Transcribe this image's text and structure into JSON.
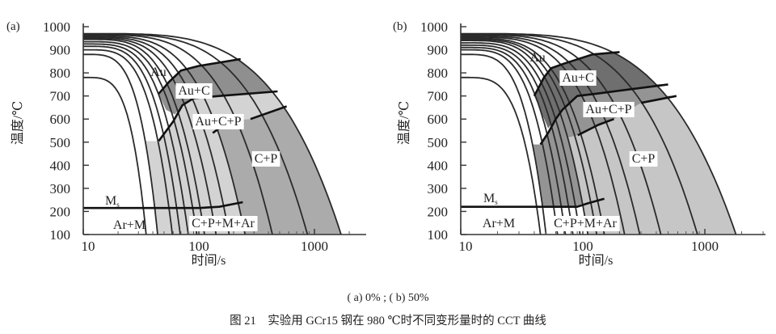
{
  "figure": {
    "caption_sub": "( a) 0% ; ( b) 50%",
    "caption_main": "图 21　实验用 GCr15 钢在 980 ℃时不同变形量时的 CCT 曲线"
  },
  "chart_data": [
    {
      "panel": "(a)",
      "type": "line",
      "title": "0%",
      "xlabel": "时间/s",
      "ylabel": "温度/℃",
      "xscale": "log",
      "xlim": [
        10,
        2500
      ],
      "ylim": [
        100,
        1000
      ],
      "xticks": [
        10,
        100,
        1000
      ],
      "xtick_labels": [
        "10",
        "100",
        "1000"
      ],
      "yticks": [
        100,
        200,
        300,
        400,
        500,
        600,
        700,
        800,
        900,
        1000
      ],
      "ytick_labels": [
        "100",
        "200",
        "300",
        "400",
        "500",
        "600",
        "700",
        "800",
        "900",
        "1000"
      ],
      "labels": {
        "au": "Au",
        "au_c": "Au+C",
        "au_c_p": "Au+C+P",
        "c_p": "C+P",
        "ms": "M",
        "ms_sub": "s",
        "ar_m": "Ar+M",
        "c_p_m_ar": "C+P+M+Ar"
      },
      "cooling_curves": [
        {
          "T0": 780,
          "t_end": 35
        },
        {
          "T0": 880,
          "t_end": 44
        },
        {
          "T0": 900,
          "t_end": 59
        },
        {
          "T0": 915,
          "t_end": 69
        },
        {
          "T0": 925,
          "t_end": 81
        },
        {
          "T0": 935,
          "t_end": 96
        },
        {
          "T0": 945,
          "t_end": 112
        },
        {
          "T0": 950,
          "t_end": 141
        },
        {
          "T0": 955,
          "t_end": 183
        },
        {
          "T0": 960,
          "t_end": 251
        },
        {
          "T0": 965,
          "t_end": 433
        },
        {
          "T0": 968,
          "t_end": 870
        },
        {
          "T0": 970,
          "t_end": 1700
        }
      ],
      "boundaries": [
        {
          "name": "austenite-decomposition-start",
          "points": [
            [
              45,
              710
            ],
            [
              55,
              760
            ],
            [
              70,
              810
            ],
            [
              100,
              830
            ],
            [
              230,
              860
            ]
          ]
        },
        {
          "name": "pearlite-start",
          "points": [
            [
              45,
              505
            ],
            [
              60,
              590
            ],
            [
              72,
              660
            ],
            [
              90,
              690
            ],
            [
              150,
              700
            ],
            [
              480,
              720
            ]
          ]
        },
        {
          "name": "pearlite-mark",
          "points": [
            [
              132,
              540
            ],
            [
              150,
              560
            ]
          ]
        },
        {
          "name": "transformation-end",
          "points": [
            [
              280,
              600
            ],
            [
              575,
              655
            ]
          ]
        },
        {
          "name": "ms-line",
          "points": [
            [
              10,
              215
            ],
            [
              100,
              215
            ],
            [
              150,
              220
            ],
            [
              240,
              240
            ]
          ]
        }
      ],
      "regions": [
        {
          "name": "light",
          "color": "#d3d3d3",
          "polygon": [
            [
              45,
              505
            ],
            [
              60,
              590
            ],
            [
              72,
              660
            ],
            [
              90,
              690
            ],
            [
              150,
              700
            ],
            [
              480,
              720
            ],
            {
              "curve": 12,
              "from": 720,
              "to": 655
            },
            [
              575,
              655
            ],
            [
              280,
              600
            ],
            {
              "curve": 9,
              "from": 590,
              "to": 100
            },
            {
              "curve": 1,
              "from": 100,
              "to": 505
            }
          ]
        },
        {
          "name": "medium",
          "color": "#ababab",
          "polygon": [
            [
              280,
              600
            ],
            [
              575,
              655
            ],
            {
              "curve": 12,
              "from": 655,
              "to": 100
            },
            {
              "curve": 9,
              "from": 100,
              "to": 590
            }
          ]
        },
        {
          "name": "dark",
          "color": "#8f8f8f",
          "polygon": [
            [
              45,
              710
            ],
            [
              55,
              760
            ],
            [
              70,
              810
            ],
            [
              100,
              830
            ],
            [
              230,
              860
            ],
            {
              "curve": 12,
              "from": 860,
              "to": 720
            },
            [
              480,
              720
            ],
            [
              150,
              700
            ],
            [
              90,
              690
            ],
            [
              72,
              660
            ],
            [
              62,
              620
            ],
            [
              52,
              640
            ]
          ]
        }
      ]
    },
    {
      "panel": "(b)",
      "type": "line",
      "title": "50%",
      "xlabel": "时间/s",
      "ylabel": "温度/℃",
      "xscale": "log",
      "xlim": [
        10,
        2500
      ],
      "ylim": [
        100,
        1000
      ],
      "xticks": [
        10,
        100,
        1000
      ],
      "xtick_labels": [
        "10",
        "100",
        "1000"
      ],
      "yticks": [
        100,
        200,
        300,
        400,
        500,
        600,
        700,
        800,
        900,
        1000
      ],
      "ytick_labels": [
        "100",
        "200",
        "300",
        "400",
        "500",
        "600",
        "700",
        "800",
        "900",
        "1000"
      ],
      "labels": {
        "au": "Au",
        "au_c": "Au+C",
        "au_c_p": "Au+C+P",
        "c_p": "C+P",
        "ms": "M",
        "ms_sub": "s",
        "ar_m": "Ar+M",
        "c_p_m_ar": "C+P+M+Ar"
      },
      "cooling_curves": [
        {
          "T0": 780,
          "t_end": 45
        },
        {
          "T0": 880,
          "t_end": 50
        },
        {
          "T0": 900,
          "t_end": 62
        },
        {
          "T0": 910,
          "t_end": 72
        },
        {
          "T0": 920,
          "t_end": 83
        },
        {
          "T0": 930,
          "t_end": 95
        },
        {
          "T0": 940,
          "t_end": 110
        },
        {
          "T0": 945,
          "t_end": 130
        },
        {
          "T0": 950,
          "t_end": 150
        },
        {
          "T0": 955,
          "t_end": 220
        },
        {
          "T0": 960,
          "t_end": 293
        },
        {
          "T0": 965,
          "t_end": 436
        },
        {
          "T0": 968,
          "t_end": 870
        },
        {
          "T0": 970,
          "t_end": 1800
        }
      ],
      "boundaries": [
        {
          "name": "austenite-decomposition-start",
          "points": [
            [
              40,
              700
            ],
            [
              48,
              780
            ],
            [
              55,
              820
            ],
            [
              70,
              840
            ],
            [
              120,
              880
            ],
            [
              200,
              890
            ]
          ]
        },
        {
          "name": "pearlite-start",
          "points": [
            [
              45,
              490
            ],
            [
              52,
              540
            ],
            [
              60,
              600
            ],
            [
              68,
              640
            ],
            [
              90,
              700
            ],
            [
              130,
              710
            ],
            [
              500,
              750
            ]
          ]
        },
        {
          "name": "transformation-end",
          "points": [
            [
              91,
              530
            ],
            [
              134,
              575
            ],
            [
              180,
              600
            ]
          ]
        },
        {
          "name": "transformation-end-upper",
          "points": [
            [
              300,
              670
            ],
            [
              585,
              700
            ]
          ]
        },
        {
          "name": "ms-line",
          "points": [
            [
              10,
              220
            ],
            [
              90,
              220
            ],
            [
              110,
              235
            ],
            [
              150,
              255
            ]
          ]
        }
      ],
      "regions": [
        {
          "name": "light",
          "color": "#c6c6c6",
          "polygon": [
            [
              91,
              530
            ],
            [
              134,
              575
            ],
            [
              180,
              600
            ],
            [
              300,
              670
            ],
            [
              585,
              700
            ],
            {
              "curve": 13,
              "from": 700,
              "to": 100
            },
            {
              "curve": 6,
              "from": 100,
              "to": 520
            }
          ]
        },
        {
          "name": "medium",
          "color": "#949494",
          "polygon": [
            [
              45,
              490
            ],
            [
              52,
              540
            ],
            [
              60,
              600
            ],
            [
              68,
              640
            ],
            [
              90,
              700
            ],
            [
              130,
              710
            ],
            [
              500,
              750
            ],
            {
              "curve": 13,
              "from": 750,
              "to": 700
            },
            [
              585,
              700
            ],
            [
              300,
              670
            ],
            [
              180,
              600
            ],
            [
              134,
              575
            ],
            [
              91,
              530
            ],
            {
              "curve": 6,
              "from": 520,
              "to": 235
            },
            [
              90,
              220
            ],
            {
              "curve": 1,
              "from": 220,
              "to": 490
            }
          ]
        },
        {
          "name": "dark",
          "color": "#6f6f6f",
          "polygon": [
            [
              40,
              700
            ],
            [
              48,
              780
            ],
            [
              55,
              820
            ],
            [
              70,
              840
            ],
            [
              120,
              880
            ],
            [
              200,
              890
            ],
            {
              "curve": 13,
              "from": 890,
              "to": 750
            },
            [
              500,
              750
            ],
            [
              130,
              710
            ],
            [
              90,
              700
            ],
            [
              68,
              640
            ],
            [
              60,
              600
            ],
            [
              52,
              560
            ]
          ]
        }
      ]
    }
  ]
}
